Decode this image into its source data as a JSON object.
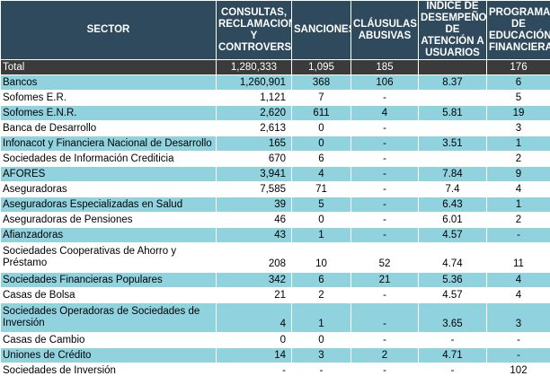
{
  "headers": {
    "sector": "SECTOR",
    "consultas": "CONSULTAS, RECLAMACIONES Y CONTROVERSIAS",
    "sanciones": "SANCIONES",
    "clausulas": "CLÁUSULAS ABUSIVAS",
    "indice": "ÍNDICE DE DESEMPEÑO DE ATENCIÓN A USUARIOS",
    "programas": "PROGRAMAS DE EDUCACIÓN FINANCIERA"
  },
  "rows": [
    {
      "sector": "Total",
      "consultas": "1,280,333",
      "sanciones": "1,095",
      "clausulas": "185",
      "indice": "",
      "programas": "176",
      "style": "total"
    },
    {
      "sector": "Bancos",
      "consultas": "1,260,901",
      "sanciones": "368",
      "clausulas": "106",
      "indice": "8.37",
      "programas": "6",
      "style": "teal"
    },
    {
      "sector": "Sofomes E.R.",
      "consultas": "1,121",
      "sanciones": "7",
      "clausulas": "-",
      "indice": "",
      "programas": "5",
      "style": "white"
    },
    {
      "sector": "Sofomes E.N.R.",
      "consultas": "2,620",
      "sanciones": "611",
      "clausulas": "4",
      "indice": "5.81",
      "programas": "19",
      "style": "teal"
    },
    {
      "sector": "Banca de Desarrollo",
      "consultas": "2,613",
      "sanciones": "0",
      "clausulas": "-",
      "indice": "",
      "programas": "3",
      "style": "white"
    },
    {
      "sector": "Infonacot y Financiera Nacional de Desarrollo",
      "consultas": "165",
      "sanciones": "0",
      "clausulas": "-",
      "indice": "3.51",
      "programas": "1",
      "style": "teal"
    },
    {
      "sector": "Sociedades de Información Crediticia",
      "consultas": "670",
      "sanciones": "6",
      "clausulas": "-",
      "indice": "",
      "programas": "2",
      "style": "white"
    },
    {
      "sector": "AFORES",
      "consultas": "3,941",
      "sanciones": "4",
      "clausulas": "-",
      "indice": "7.84",
      "programas": "9",
      "style": "teal"
    },
    {
      "sector": "Aseguradoras",
      "consultas": "7,585",
      "sanciones": "71",
      "clausulas": "-",
      "indice": "7.4",
      "programas": "4",
      "style": "white"
    },
    {
      "sector": "Aseguradoras Especializadas en Salud",
      "consultas": "39",
      "sanciones": "5",
      "clausulas": "-",
      "indice": "6.43",
      "programas": "1",
      "style": "teal"
    },
    {
      "sector": "Aseguradoras de Pensiones",
      "consultas": "46",
      "sanciones": "0",
      "clausulas": "-",
      "indice": "6.01",
      "programas": "2",
      "style": "white"
    },
    {
      "sector": "Afianzadoras",
      "consultas": "43",
      "sanciones": "1",
      "clausulas": "-",
      "indice": "4.57",
      "programas": "-",
      "style": "teal"
    },
    {
      "sector": "Sociedades Cooperativas de Ahorro y Préstamo",
      "consultas": "208",
      "sanciones": "10",
      "clausulas": "52",
      "indice": "4.74",
      "programas": "11",
      "style": "white tall"
    },
    {
      "sector": "Sociedades Financieras Populares",
      "consultas": "342",
      "sanciones": "6",
      "clausulas": "21",
      "indice": "5.36",
      "programas": "4",
      "style": "teal"
    },
    {
      "sector": "Casas de Bolsa",
      "consultas": "21",
      "sanciones": "2",
      "clausulas": "-",
      "indice": "4.57",
      "programas": "4",
      "style": "white"
    },
    {
      "sector": "Sociedades Operadoras de Sociedades de Inversión",
      "consultas": "4",
      "sanciones": "1",
      "clausulas": "-",
      "indice": "3.65",
      "programas": "3",
      "style": "teal tall"
    },
    {
      "sector": "Casas de Cambio",
      "consultas": "0",
      "sanciones": "0",
      "clausulas": "-",
      "indice": "-",
      "programas": "-",
      "style": "white"
    },
    {
      "sector": "Uniones de Crédito",
      "consultas": "14",
      "sanciones": "3",
      "clausulas": "2",
      "indice": "4.71",
      "programas": "-",
      "style": "teal"
    },
    {
      "sector": "Sociedades de Inversión",
      "consultas": "-",
      "sanciones": "-",
      "clausulas": "-",
      "indice": "-",
      "programas": "102",
      "style": "white"
    }
  ]
}
